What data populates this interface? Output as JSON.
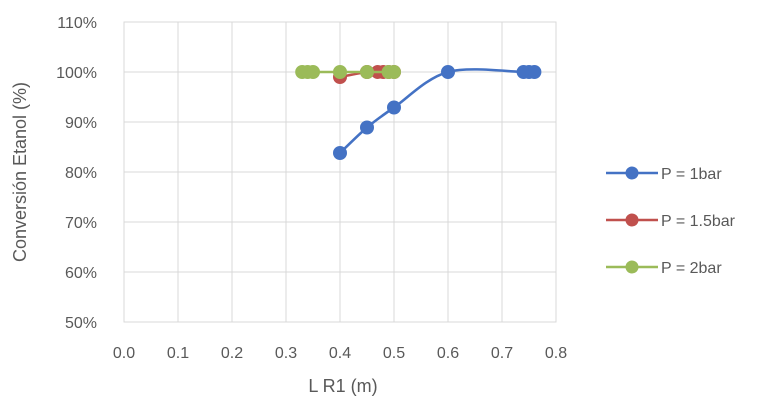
{
  "chart_data": {
    "type": "scatter",
    "xlabel": "L R1 (m)",
    "ylabel": "Conversión Etanol (%)",
    "xlim": [
      0.0,
      0.8
    ],
    "ylim": [
      50,
      110
    ],
    "x_ticks": [
      "0.0",
      "0.1",
      "0.2",
      "0.3",
      "0.4",
      "0.5",
      "0.6",
      "0.7",
      "0.8"
    ],
    "y_ticks": [
      "50%",
      "60%",
      "70%",
      "80%",
      "90%",
      "100%",
      "110%"
    ],
    "grid": true,
    "legend_position": "right",
    "series": [
      {
        "name": "P = 1bar",
        "color": "#4472C4",
        "smooth": true,
        "x": [
          0.4,
          0.45,
          0.5,
          0.6,
          0.74,
          0.75,
          0.76
        ],
        "y": [
          83.8,
          88.9,
          92.9,
          100.0,
          100.0,
          100.0,
          100.0
        ]
      },
      {
        "name": "P = 1.5bar",
        "color": "#C0504D",
        "smooth": true,
        "x": [
          0.4,
          0.45,
          0.47,
          0.48,
          0.49,
          0.5
        ],
        "y": [
          99.0,
          100.0,
          100.0,
          100.0,
          100.0,
          100.0
        ]
      },
      {
        "name": "P = 2bar",
        "color": "#9BBB59",
        "smooth": true,
        "x": [
          0.33,
          0.34,
          0.35,
          0.4,
          0.45,
          0.49,
          0.5
        ],
        "y": [
          100.0,
          100.0,
          100.0,
          100.0,
          100.0,
          100.0,
          100.0
        ]
      }
    ]
  }
}
